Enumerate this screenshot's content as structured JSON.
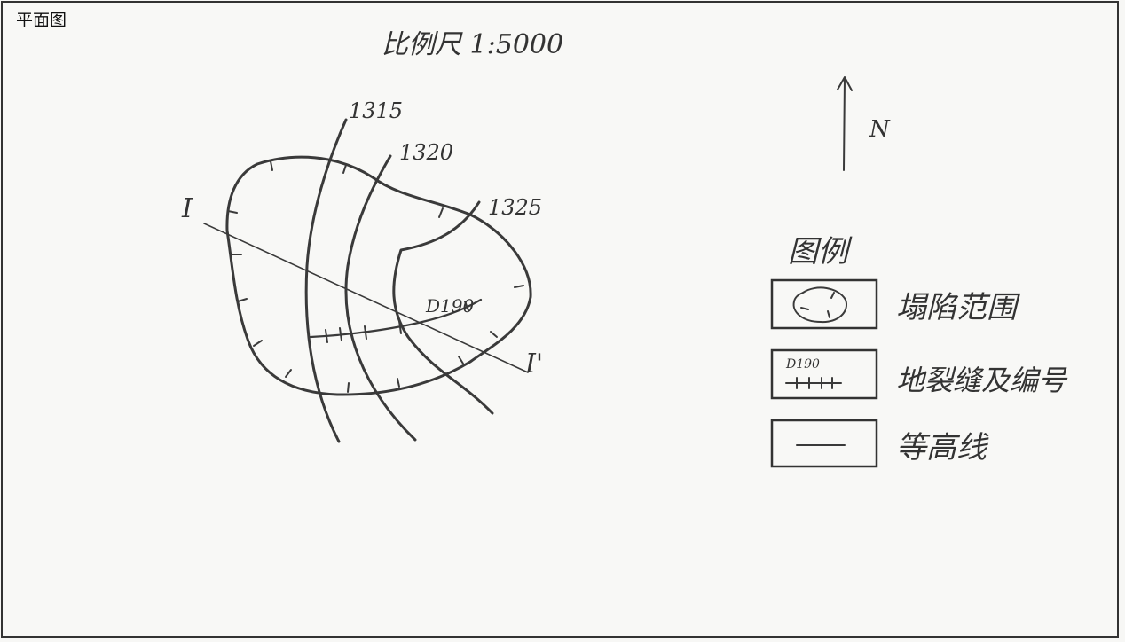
{
  "page": {
    "corner_title": "平面图"
  },
  "map": {
    "scale": "比例尺 1:5000",
    "north": "N",
    "contours": [
      "1315",
      "1320",
      "1325"
    ],
    "section_start": "I",
    "section_end": "I'",
    "crack_id": "D190"
  },
  "legend": {
    "title": "图例",
    "items": [
      {
        "symbol": "collapse-area",
        "label": "塌陷范围"
      },
      {
        "symbol": "crack-line",
        "sample_id": "D190",
        "label": "地裂缝及编号"
      },
      {
        "symbol": "contour-line",
        "label": "等高线"
      }
    ]
  }
}
